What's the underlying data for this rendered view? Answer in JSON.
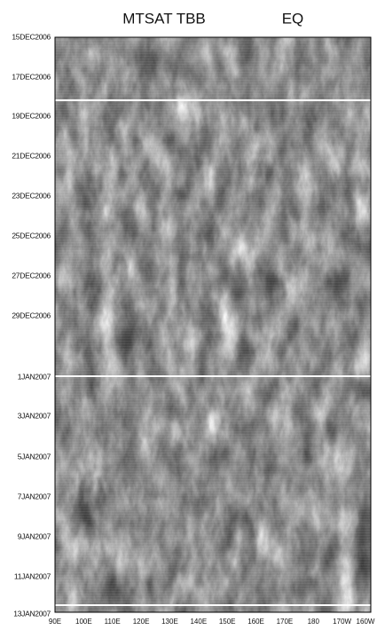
{
  "title": "MTSAT TBB",
  "subtitle": "EQ",
  "y_labels": [
    "15DEC2006",
    "17DEC2006",
    "19DEC2006",
    "21DEC2006",
    "23DEC2006",
    "25DEC2006",
    "27DEC2006",
    "29DEC2006",
    "1JAN2007",
    "3JAN2007",
    "5JAN2007",
    "7JAN2007",
    "9JAN2007",
    "11JAN2007",
    "13JAN2007"
  ],
  "x_labels": [
    "90E",
    "100E",
    "110E",
    "120E",
    "130E",
    "140E",
    "150E",
    "160E",
    "170E",
    "180",
    "170W",
    "160W"
  ]
}
